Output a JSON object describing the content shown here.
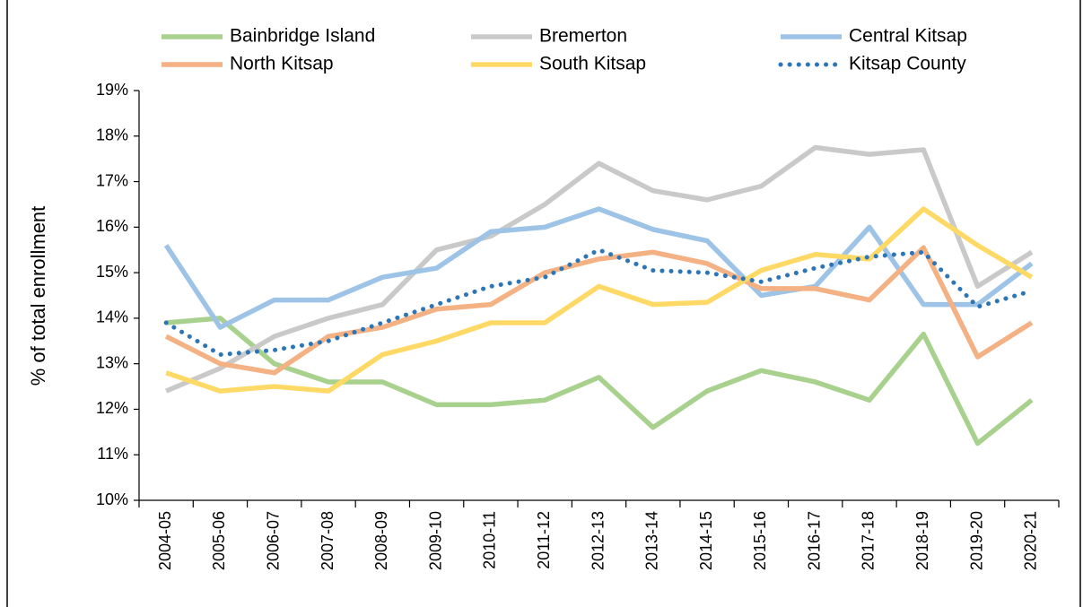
{
  "chart_data": {
    "type": "line",
    "y_label": "% of total enrollment",
    "categories": [
      "2004-05",
      "2005-06",
      "2006-07",
      "2007-08",
      "2008-09",
      "2009-10",
      "2010-11",
      "2011-12",
      "2012-13",
      "2013-14",
      "2014-15",
      "2015-16",
      "2016-17",
      "2017-18",
      "2018-19",
      "2019-20",
      "2020-21"
    ],
    "series": [
      {
        "name": "Bainbridge Island",
        "color": "#a9d18e",
        "values": [
          13.9,
          14.0,
          13.0,
          12.6,
          12.6,
          12.1,
          12.1,
          12.2,
          12.7,
          11.6,
          12.4,
          12.85,
          12.6,
          12.2,
          13.65,
          11.25,
          12.2
        ]
      },
      {
        "name": "Bremerton",
        "color": "#c9c9c9",
        "values": [
          12.4,
          12.9,
          13.6,
          14.0,
          14.3,
          15.5,
          15.8,
          16.5,
          17.4,
          16.8,
          16.6,
          16.9,
          17.75,
          17.6,
          17.7,
          14.7,
          15.45
        ]
      },
      {
        "name": "Central Kitsap",
        "color": "#9dc3e6",
        "values": [
          15.6,
          13.8,
          14.4,
          14.4,
          14.9,
          15.1,
          15.9,
          16.0,
          16.4,
          15.95,
          15.7,
          14.5,
          14.7,
          16.0,
          14.3,
          14.3,
          15.2
        ]
      },
      {
        "name": "North Kitsap",
        "color": "#f4b183",
        "values": [
          13.6,
          13.0,
          12.8,
          13.6,
          13.8,
          14.2,
          14.3,
          15.0,
          15.3,
          15.45,
          15.2,
          14.65,
          14.65,
          14.4,
          15.55,
          13.15,
          13.9
        ]
      },
      {
        "name": "South Kitsap",
        "color": "#ffd966",
        "values": [
          12.8,
          12.4,
          12.5,
          12.4,
          13.2,
          13.5,
          13.9,
          13.9,
          14.7,
          14.3,
          14.35,
          15.05,
          15.4,
          15.3,
          16.4,
          15.6,
          14.9
        ]
      },
      {
        "name": "Kitsap County",
        "color": "#2e75b6",
        "style": "dotted",
        "values": [
          13.9,
          13.2,
          13.3,
          13.5,
          13.9,
          14.3,
          14.7,
          14.9,
          15.5,
          15.05,
          15.0,
          14.8,
          15.1,
          15.35,
          15.45,
          14.25,
          14.6
        ]
      }
    ],
    "ylim": [
      10,
      19
    ],
    "yticks": [
      {
        "value": 10,
        "label": "10%"
      },
      {
        "value": 11,
        "label": "11%"
      },
      {
        "value": 12,
        "label": "12%"
      },
      {
        "value": 13,
        "label": "13%"
      },
      {
        "value": 14,
        "label": "14%"
      },
      {
        "value": 15,
        "label": "15%"
      },
      {
        "value": 16,
        "label": "16%"
      },
      {
        "value": 17,
        "label": "17%"
      },
      {
        "value": 18,
        "label": "18%"
      },
      {
        "value": 19,
        "label": "19%"
      }
    ],
    "legend": "top"
  }
}
